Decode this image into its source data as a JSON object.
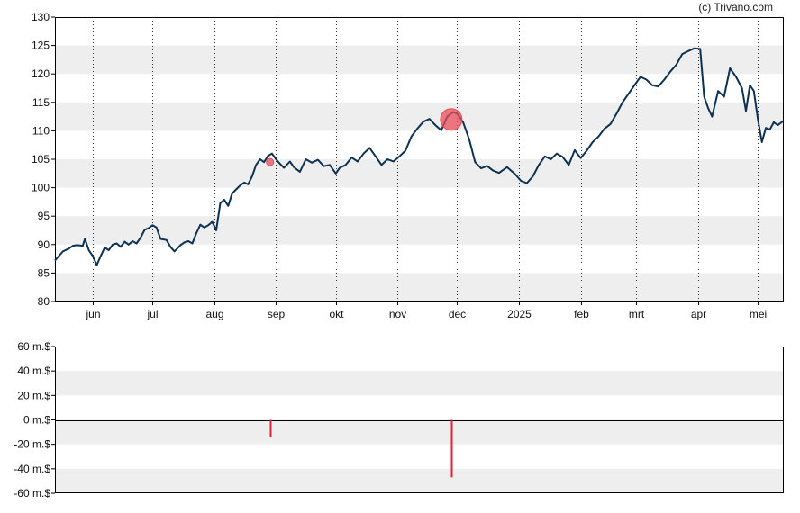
{
  "copyright": "(c) Trivano.com",
  "chart_data": [
    {
      "type": "line",
      "title": "",
      "xlabel": "",
      "ylabel": "",
      "ylim": [
        80,
        130
      ],
      "yticks": [
        80,
        85,
        90,
        95,
        100,
        105,
        110,
        115,
        120,
        125,
        130
      ],
      "x_tick_labels": [
        "jun",
        "jul",
        "aug",
        "sep",
        "okt",
        "nov",
        "dec",
        "2025",
        "feb",
        "mrt",
        "apr",
        "mei"
      ],
      "x_start": "2024-05-13",
      "x_end": "2025-05-14",
      "month_starts": [
        "2024-06-01",
        "2024-07-01",
        "2024-08-01",
        "2024-09-01",
        "2024-10-01",
        "2024-11-01",
        "2024-12-01",
        "2025-01-01",
        "2025-02-01",
        "2025-03-01",
        "2025-04-01",
        "2025-05-01"
      ],
      "grid": true,
      "line_color": "#0d3152",
      "series": [
        {
          "values": [
            [
              "2024-05-13",
              87.2
            ],
            [
              "2024-05-15",
              88.0
            ],
            [
              "2024-05-17",
              88.8
            ],
            [
              "2024-05-20",
              89.3
            ],
            [
              "2024-05-22",
              89.8
            ],
            [
              "2024-05-24",
              89.9
            ],
            [
              "2024-05-27",
              89.8
            ],
            [
              "2024-05-28",
              91.0
            ],
            [
              "2024-05-30",
              89.0
            ],
            [
              "2024-06-01",
              88.0
            ],
            [
              "2024-06-03",
              86.4
            ],
            [
              "2024-06-05",
              88.0
            ],
            [
              "2024-06-07",
              89.5
            ],
            [
              "2024-06-09",
              89.0
            ],
            [
              "2024-06-11",
              90.0
            ],
            [
              "2024-06-13",
              90.2
            ],
            [
              "2024-06-15",
              89.6
            ],
            [
              "2024-06-17",
              90.5
            ],
            [
              "2024-06-19",
              90.0
            ],
            [
              "2024-06-21",
              90.6
            ],
            [
              "2024-06-23",
              90.2
            ],
            [
              "2024-06-25",
              91.2
            ],
            [
              "2024-06-27",
              92.6
            ],
            [
              "2024-06-29",
              92.9
            ],
            [
              "2024-07-01",
              93.4
            ],
            [
              "2024-07-03",
              93.0
            ],
            [
              "2024-07-05",
              91.0
            ],
            [
              "2024-07-08",
              90.8
            ],
            [
              "2024-07-10",
              89.6
            ],
            [
              "2024-07-12",
              88.8
            ],
            [
              "2024-07-15",
              89.9
            ],
            [
              "2024-07-17",
              90.4
            ],
            [
              "2024-07-19",
              90.6
            ],
            [
              "2024-07-21",
              90.2
            ],
            [
              "2024-07-23",
              92.0
            ],
            [
              "2024-07-25",
              93.5
            ],
            [
              "2024-07-27",
              93.0
            ],
            [
              "2024-07-29",
              93.4
            ],
            [
              "2024-07-31",
              94.0
            ],
            [
              "2024-08-02",
              92.5
            ],
            [
              "2024-08-04",
              97.3
            ],
            [
              "2024-08-06",
              97.9
            ],
            [
              "2024-08-08",
              96.8
            ],
            [
              "2024-08-10",
              99.0
            ],
            [
              "2024-08-12",
              99.7
            ],
            [
              "2024-08-14",
              100.4
            ],
            [
              "2024-08-16",
              100.9
            ],
            [
              "2024-08-18",
              100.6
            ],
            [
              "2024-08-20",
              102.0
            ],
            [
              "2024-08-22",
              104.0
            ],
            [
              "2024-08-24",
              105.0
            ],
            [
              "2024-08-26",
              104.5
            ],
            [
              "2024-08-28",
              105.6
            ],
            [
              "2024-08-30",
              106.0
            ],
            [
              "2024-09-01",
              105.0
            ],
            [
              "2024-09-03",
              104.2
            ],
            [
              "2024-09-05",
              103.5
            ],
            [
              "2024-09-08",
              104.6
            ],
            [
              "2024-09-10",
              103.6
            ],
            [
              "2024-09-13",
              102.8
            ],
            [
              "2024-09-16",
              105.0
            ],
            [
              "2024-09-19",
              104.4
            ],
            [
              "2024-09-22",
              104.9
            ],
            [
              "2024-09-25",
              103.8
            ],
            [
              "2024-09-28",
              104.0
            ],
            [
              "2024-10-01",
              102.5
            ],
            [
              "2024-10-03",
              103.5
            ],
            [
              "2024-10-06",
              104.0
            ],
            [
              "2024-10-09",
              105.3
            ],
            [
              "2024-10-12",
              104.6
            ],
            [
              "2024-10-15",
              106.0
            ],
            [
              "2024-10-18",
              107.0
            ],
            [
              "2024-10-21",
              105.5
            ],
            [
              "2024-10-24",
              104.0
            ],
            [
              "2024-10-27",
              105.0
            ],
            [
              "2024-10-30",
              104.6
            ],
            [
              "2024-11-02",
              105.5
            ],
            [
              "2024-11-05",
              106.5
            ],
            [
              "2024-11-08",
              109.0
            ],
            [
              "2024-11-11",
              110.4
            ],
            [
              "2024-11-14",
              111.6
            ],
            [
              "2024-11-17",
              112.1
            ],
            [
              "2024-11-20",
              111.0
            ],
            [
              "2024-11-23",
              110.1
            ],
            [
              "2024-11-26",
              112.5
            ],
            [
              "2024-11-29",
              113.3
            ],
            [
              "2024-12-01",
              113.0
            ],
            [
              "2024-12-04",
              111.5
            ],
            [
              "2024-12-07",
              108.5
            ],
            [
              "2024-12-10",
              104.5
            ],
            [
              "2024-12-13",
              103.4
            ],
            [
              "2024-12-16",
              103.8
            ],
            [
              "2024-12-19",
              103.0
            ],
            [
              "2024-12-22",
              102.6
            ],
            [
              "2024-12-26",
              103.6
            ],
            [
              "2024-12-30",
              102.4
            ],
            [
              "2025-01-02",
              101.2
            ],
            [
              "2025-01-05",
              100.8
            ],
            [
              "2025-01-08",
              102.0
            ],
            [
              "2025-01-11",
              104.0
            ],
            [
              "2025-01-14",
              105.5
            ],
            [
              "2025-01-17",
              105.0
            ],
            [
              "2025-01-20",
              106.0
            ],
            [
              "2025-01-23",
              105.4
            ],
            [
              "2025-01-26",
              104.0
            ],
            [
              "2025-01-29",
              106.6
            ],
            [
              "2025-02-01",
              105.2
            ],
            [
              "2025-02-04",
              106.5
            ],
            [
              "2025-02-07",
              108.0
            ],
            [
              "2025-02-10",
              109.0
            ],
            [
              "2025-02-13",
              110.4
            ],
            [
              "2025-02-16",
              111.2
            ],
            [
              "2025-02-19",
              113.0
            ],
            [
              "2025-02-22",
              115.0
            ],
            [
              "2025-02-25",
              116.5
            ],
            [
              "2025-02-28",
              118.0
            ],
            [
              "2025-03-03",
              119.5
            ],
            [
              "2025-03-06",
              119.0
            ],
            [
              "2025-03-09",
              118.0
            ],
            [
              "2025-03-12",
              117.8
            ],
            [
              "2025-03-15",
              119.0
            ],
            [
              "2025-03-18",
              120.4
            ],
            [
              "2025-03-21",
              121.6
            ],
            [
              "2025-03-24",
              123.5
            ],
            [
              "2025-03-27",
              124.0
            ],
            [
              "2025-03-30",
              124.5
            ],
            [
              "2025-04-02",
              124.4
            ],
            [
              "2025-04-04",
              116.0
            ],
            [
              "2025-04-06",
              114.0
            ],
            [
              "2025-04-08",
              112.5
            ],
            [
              "2025-04-11",
              117.0
            ],
            [
              "2025-04-14",
              116.0
            ],
            [
              "2025-04-17",
              121.0
            ],
            [
              "2025-04-20",
              119.5
            ],
            [
              "2025-04-23",
              117.5
            ],
            [
              "2025-04-25",
              113.5
            ],
            [
              "2025-04-27",
              118.0
            ],
            [
              "2025-04-29",
              117.0
            ],
            [
              "2025-05-01",
              112.0
            ],
            [
              "2025-05-03",
              108.0
            ],
            [
              "2025-05-05",
              110.5
            ],
            [
              "2025-05-07",
              110.2
            ],
            [
              "2025-05-09",
              111.5
            ],
            [
              "2025-05-11",
              111.0
            ],
            [
              "2025-05-14",
              111.8
            ]
          ]
        }
      ],
      "markers": [
        {
          "date": "2024-08-29",
          "value": 104.5,
          "size": "small",
          "color": "#e84c5a"
        },
        {
          "date": "2024-11-28",
          "value": 112.0,
          "size": "large",
          "color": "#e84c5a"
        }
      ]
    },
    {
      "type": "bar",
      "title": "",
      "xlabel": "",
      "ylabel": "",
      "ylim": [
        -60,
        60
      ],
      "yticks": [
        -60,
        -40,
        -20,
        0,
        20,
        40,
        60
      ],
      "ytick_labels": [
        "-60 m.$",
        "-40 m.$",
        "-20 m.$",
        "0 m.$",
        "20 m.$",
        "40 m.$",
        "60 m.$"
      ],
      "grid": true,
      "bar_color": "#e0213a",
      "bars": [
        {
          "date": "2024-08-29",
          "value": -14
        },
        {
          "date": "2024-11-28",
          "value": -47
        }
      ]
    }
  ]
}
